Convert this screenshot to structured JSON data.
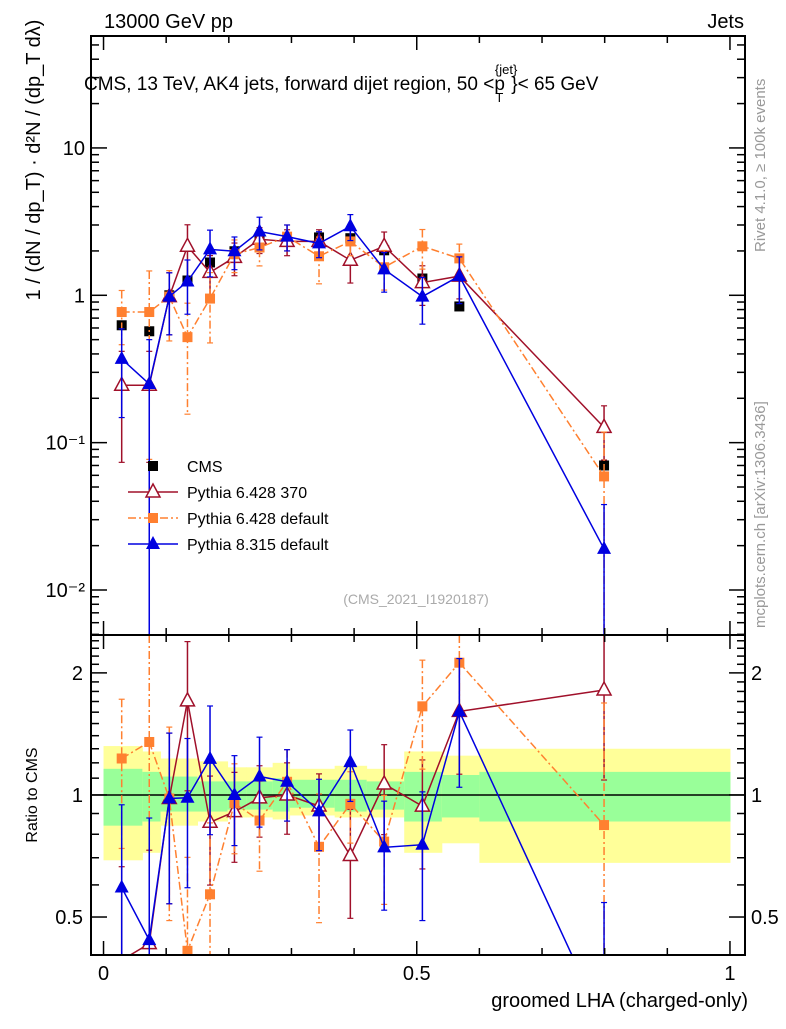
{
  "header": {
    "left": "13000 GeV pp",
    "right": "Jets"
  },
  "side_labels": {
    "rivet": "Rivet 4.1.0, ≥ 100k events",
    "mcplots": "mcplots.cern.ch [arXiv:1306.3436]"
  },
  "watermark": "(CMS_2021_I1920187)",
  "chart_data": {
    "type": "scatter",
    "title": "CMS, 13 TeV, AK4 jets, forward dijet region, 50 <p_T^{jet}< 65 GeV",
    "title_parts": {
      "main": "CMS, 13 TeV, AK4 jets, forward dijet region, 50 <p",
      "sup": "{jet}",
      "sub": "T",
      "tail": "}< 65 GeV"
    },
    "xlabel": "groomed LHA (charged-only)",
    "ylabel": "1 / (dN / dp_T) · d²N / (dp_T dλ)",
    "ratio_ylabel": "Ratio to CMS",
    "xlim": [
      -0.02,
      1.024
    ],
    "ylim": [
      0.00495,
      57.5
    ],
    "yscale": "log",
    "ratio_ylim": [
      0.403,
      2.48
    ],
    "x_ticks": [
      {
        "v": 0,
        "label": "0"
      },
      {
        "v": 0.5,
        "label": "0.5"
      },
      {
        "v": 1,
        "label": "1"
      }
    ],
    "y_ticks": [
      {
        "v": 10,
        "label": "10"
      },
      {
        "v": 1,
        "label": "1"
      },
      {
        "v": 0.1,
        "label": "10⁻¹"
      },
      {
        "v": 0.01,
        "label": "10⁻²"
      }
    ],
    "ratio_ticks": [
      {
        "v": 2,
        "label": "2"
      },
      {
        "v": 1,
        "label": "1"
      },
      {
        "v": 0.5,
        "label": "0.5"
      }
    ],
    "x": [
      0.029,
      0.073,
      0.105,
      0.134,
      0.17,
      0.209,
      0.249,
      0.293,
      0.344,
      0.394,
      0.448,
      0.509,
      0.568,
      0.799
    ],
    "legend_position": "lower-left",
    "series": [
      {
        "name": "CMS",
        "color": "#000000",
        "marker": "square",
        "line": "none",
        "values": [
          0.626,
          0.57,
          1.0,
          1.26,
          1.67,
          1.99,
          2.44,
          2.32,
          2.47,
          2.44,
          2.02,
          1.3,
          0.84,
          0.07
        ],
        "rel_err": [
          0.04,
          0.04,
          0.03,
          0.03,
          0.03,
          0.03,
          0.03,
          0.03,
          0.03,
          0.03,
          0.03,
          0.03,
          0.03,
          0.05
        ]
      },
      {
        "name": "Pythia 6.428 370",
        "color": "#a0102a",
        "marker": "open-triangle",
        "line": "solid",
        "values": [
          0.245,
          0.245,
          0.98,
          2.15,
          1.43,
          1.81,
          2.4,
          2.32,
          2.32,
          1.73,
          2.15,
          1.22,
          1.35,
          0.127
        ],
        "rel_err": [
          0.7,
          0.7,
          0.45,
          0.4,
          0.3,
          0.25,
          0.2,
          0.2,
          0.2,
          0.3,
          0.25,
          0.3,
          0.3,
          0.4
        ]
      },
      {
        "name": "Pythia 6.428 default",
        "color": "#ff8030",
        "marker": "square",
        "line": "dashdot",
        "values": [
          0.77,
          0.77,
          0.98,
          0.52,
          0.95,
          1.9,
          2.11,
          2.5,
          1.84,
          2.32,
          1.55,
          2.15,
          1.78,
          0.059
        ],
        "rel_err": [
          0.4,
          0.9,
          0.5,
          0.7,
          0.5,
          0.25,
          0.25,
          0.2,
          0.35,
          0.2,
          0.3,
          0.3,
          0.25,
          1.0
        ]
      },
      {
        "name": "Pythia 8.315 default",
        "color": "#0000e0",
        "marker": "triangle",
        "line": "solid",
        "values": [
          0.37,
          0.25,
          0.98,
          1.24,
          2.05,
          1.99,
          2.71,
          2.5,
          2.25,
          2.94,
          1.5,
          0.98,
          1.35,
          0.019
        ],
        "rel_err": [
          0.6,
          1.0,
          0.45,
          0.4,
          0.35,
          0.25,
          0.25,
          0.2,
          0.2,
          0.2,
          0.3,
          0.35,
          0.35,
          1.0
        ]
      }
    ],
    "ratio_band": {
      "edges": [
        0,
        0.062,
        0.091,
        0.15,
        0.198,
        0.228,
        0.27,
        0.297,
        0.369,
        0.42,
        0.48,
        0.54,
        0.6,
        1.0
      ],
      "green_color": "#99ff99",
      "yellow_color": "#ffff99",
      "green_up": [
        1.16,
        1.14,
        1.11,
        1.08,
        1.08,
        1.08,
        1.1,
        1.09,
        1.09,
        1.08,
        1.14,
        1.12,
        1.14
      ],
      "green_dn": [
        0.84,
        0.86,
        0.91,
        0.91,
        0.92,
        0.92,
        0.91,
        0.93,
        0.91,
        0.92,
        0.86,
        0.88,
        0.86
      ],
      "yellow_up": [
        1.32,
        1.28,
        1.23,
        1.21,
        1.17,
        1.17,
        1.2,
        1.16,
        1.18,
        1.16,
        1.28,
        1.25,
        1.3
      ],
      "yellow_dn": [
        0.69,
        0.72,
        0.84,
        0.86,
        0.88,
        0.88,
        0.87,
        0.89,
        0.88,
        0.88,
        0.72,
        0.76,
        0.68
      ]
    }
  }
}
